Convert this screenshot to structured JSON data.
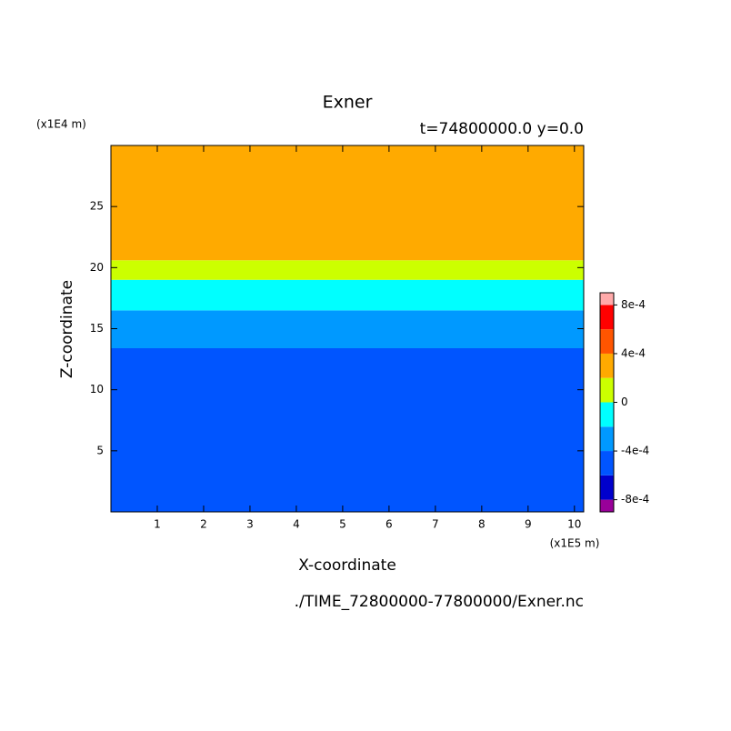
{
  "chart_data": {
    "type": "contour",
    "title": "Exner",
    "subtitle": "t=74800000.0 y=0.0",
    "x_label": "X-coordinate",
    "y_label": "Z-coordinate",
    "x_unit": "(x1E5 m)",
    "y_unit": "(x1E4 m)",
    "footer": "./TIME_72800000-77800000/Exner.nc",
    "xlim": [
      0,
      10.2
    ],
    "ylim": [
      0,
      30
    ],
    "xticks": [
      1,
      2,
      3,
      4,
      5,
      6,
      7,
      8,
      9,
      10
    ],
    "yticks": [
      5,
      10,
      15,
      20,
      25
    ],
    "bands": [
      {
        "color": "#0055ff",
        "values": [
          0,
          13.4
        ]
      },
      {
        "color": "#0099ff",
        "values": [
          13.4,
          16.5
        ]
      },
      {
        "color": "#00ffff",
        "values": [
          16.5,
          19.0
        ]
      },
      {
        "color": "#ccff00",
        "values": [
          19.0,
          20.6
        ]
      },
      {
        "color": "#ffaa00",
        "values": [
          20.6,
          30
        ]
      }
    ],
    "colorbar": {
      "colors": [
        "#990099",
        "#0000cc",
        "#0055ff",
        "#0099ff",
        "#00ffff",
        "#ccff00",
        "#ffaa00",
        "#ff5500",
        "#ff0000",
        "#ffaaaa"
      ],
      "levels": [
        -0.0008,
        -0.0006,
        -0.0004,
        -0.0002,
        0,
        0.0002,
        0.0004,
        0.0006,
        0.0008
      ],
      "ticks": [
        {
          "value": -0.0008,
          "label": "-8e-4"
        },
        {
          "value": -0.0004,
          "label": "-4e-4"
        },
        0,
        {
          "value": 0.0004,
          "label": "4e-4"
        },
        {
          "value": 0.0008,
          "label": "8e-4"
        }
      ]
    }
  }
}
